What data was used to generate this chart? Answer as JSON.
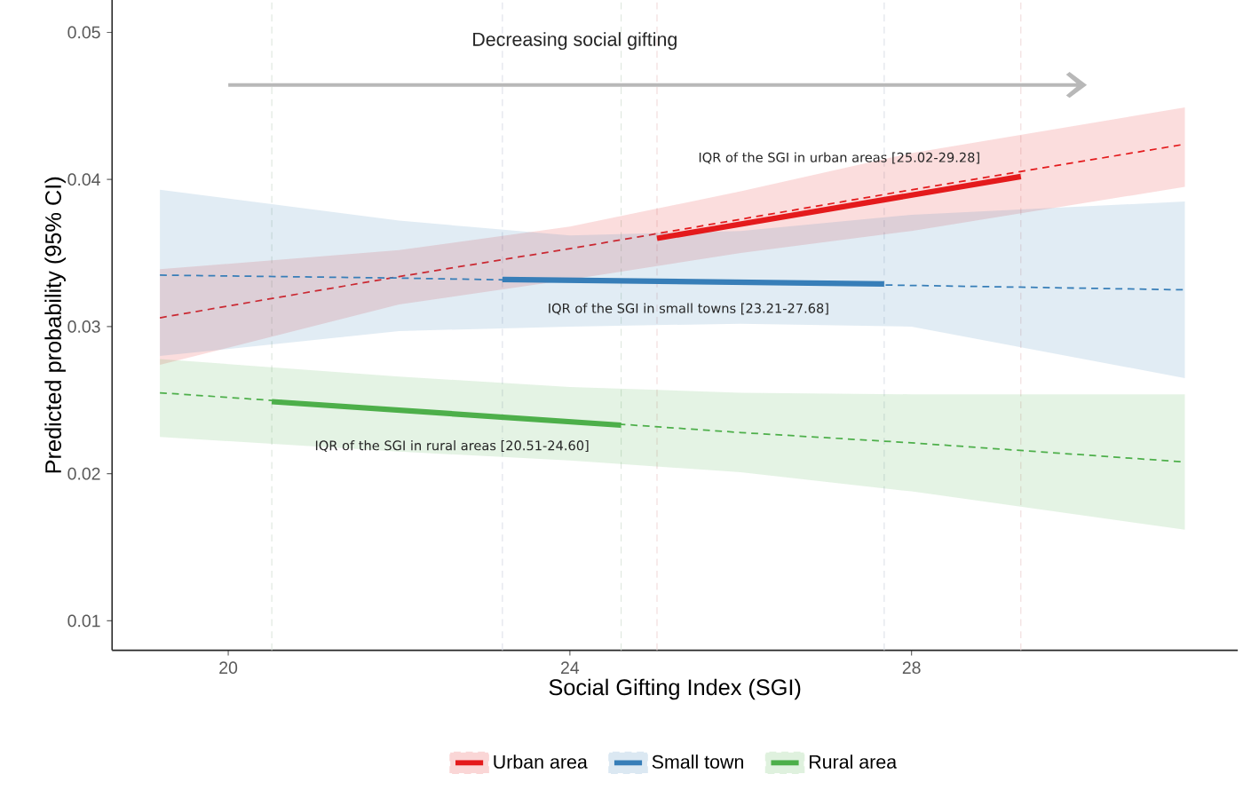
{
  "chart_data": {
    "type": "line",
    "xlabel": "Social Gifting Index (SGI)",
    "ylabel": "Predicted probability (95% CI)",
    "xlim": [
      18.64,
      31.82
    ],
    "ylim": [
      0.008,
      0.0522
    ],
    "xticks": [
      20,
      24,
      28
    ],
    "yticks": [
      0.01,
      0.02,
      0.03,
      0.04,
      0.05
    ],
    "grid": false,
    "legend": "bottom",
    "series": [
      {
        "name": "Urban area",
        "color": "#e41a1c",
        "line_style": "dashed",
        "x": [
          19.2,
          22,
          24,
          26,
          28,
          31.2
        ],
        "values": [
          0.0306,
          0.0334,
          0.0353,
          0.0373,
          0.0393,
          0.0424
        ],
        "lower": [
          0.0274,
          0.0315,
          0.0332,
          0.035,
          0.0365,
          0.0395
        ],
        "upper": [
          0.0339,
          0.0352,
          0.0368,
          0.0392,
          0.0418,
          0.0449
        ]
      },
      {
        "name": "Small town",
        "color": "#377eb8",
        "line_style": "dashed",
        "x": [
          19.2,
          22,
          24,
          26,
          28,
          31.2
        ],
        "values": [
          0.0335,
          0.0333,
          0.0331,
          0.033,
          0.0328,
          0.0325
        ],
        "lower": [
          0.028,
          0.0297,
          0.03,
          0.0302,
          0.03,
          0.0265
        ],
        "upper": [
          0.0393,
          0.0372,
          0.0362,
          0.0365,
          0.0376,
          0.0385
        ]
      },
      {
        "name": "Rural area",
        "color": "#4daf4a",
        "line_style": "dashed",
        "x": [
          19.2,
          22,
          24,
          26,
          28,
          31.2
        ],
        "values": [
          0.0255,
          0.0244,
          0.0236,
          0.0228,
          0.0221,
          0.0208
        ],
        "lower": [
          0.0225,
          0.0215,
          0.0209,
          0.0201,
          0.0188,
          0.0162
        ],
        "upper": [
          0.0278,
          0.0266,
          0.0259,
          0.0255,
          0.0254,
          0.0254
        ]
      },
      {
        "color": "#e41a1c",
        "line_style": "solid",
        "x": [
          25.02,
          29.28
        ],
        "values": [
          0.036,
          0.0402
        ]
      },
      {
        "color": "#377eb8",
        "line_style": "solid",
        "x": [
          23.21,
          27.68
        ],
        "values": [
          0.0332,
          0.0329
        ]
      },
      {
        "color": "#4daf4a",
        "line_style": "solid",
        "x": [
          20.51,
          24.6
        ],
        "values": [
          0.0249,
          0.0233
        ]
      }
    ],
    "ref_lines": [
      {
        "axis": "x",
        "value": 20.51,
        "color": "#dfe8df",
        "line_style": "dashed"
      },
      {
        "axis": "x",
        "value": 23.21,
        "color": "#dfe3ea",
        "line_style": "dashed"
      },
      {
        "axis": "x",
        "value": 24.6,
        "color": "#dfe8df",
        "line_style": "dashed"
      },
      {
        "axis": "x",
        "value": 25.02,
        "color": "#f2dddd",
        "line_style": "dashed"
      },
      {
        "axis": "x",
        "value": 27.68,
        "color": "#dfe3ea",
        "line_style": "dashed"
      },
      {
        "axis": "x",
        "value": 29.28,
        "color": "#f2dddd",
        "line_style": "dashed"
      }
    ],
    "annotations": [
      "Decreasing social gifting",
      "IQR of the SGI in urban areas [25.02-29.28]",
      "IQR of the SGI in small towns [23.21-27.68]",
      "IQR of the SGI in rural areas [20.51-24.60]"
    ]
  }
}
